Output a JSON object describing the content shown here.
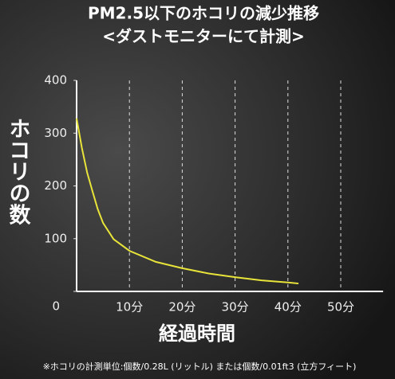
{
  "chart_data": {
    "type": "line",
    "title": "PM2.5以下のホコリの減少推移",
    "subtitle": "<ダストモニターにて計測>",
    "y_label": "ホコリの数",
    "x_label": "経過時間",
    "note": "※ホコリの計測単位:個数/0.28L (リットル) または個数/0.01ft3 (立方フィート)",
    "x": [
      0,
      1,
      2,
      3,
      4,
      5,
      7,
      10,
      15,
      20,
      25,
      30,
      35,
      40,
      42
    ],
    "values": [
      328,
      272,
      225,
      190,
      156,
      130,
      99,
      77,
      56,
      44,
      34,
      27,
      21,
      17,
      15
    ],
    "color": "#e8e43a",
    "xlim": [
      0,
      55
    ],
    "ylim": [
      0,
      400
    ],
    "xticks": [
      {
        "value": 10,
        "label": "10分"
      },
      {
        "value": 20,
        "label": "20分"
      },
      {
        "value": 30,
        "label": "30分"
      },
      {
        "value": 40,
        "label": "40分"
      },
      {
        "value": 50,
        "label": "50分"
      }
    ],
    "yticks": [
      0,
      100,
      200,
      300,
      400
    ],
    "grid": true
  }
}
